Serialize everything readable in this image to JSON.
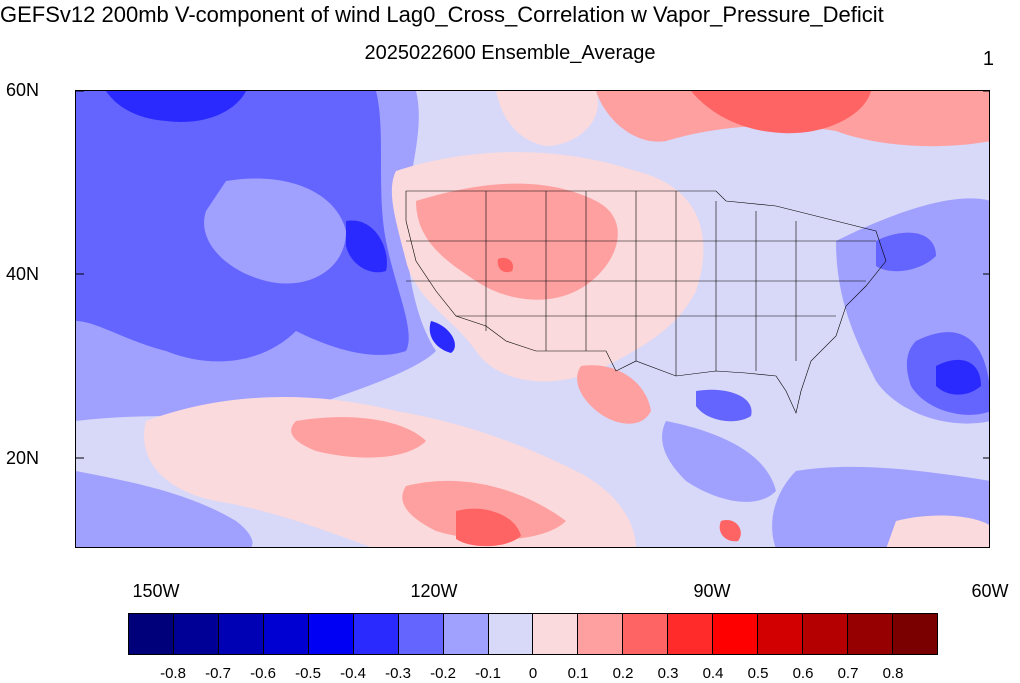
{
  "title": "GEFSv12 200mb V-component of wind Lag0_Cross_Correlation w Vapor_Pressure_Deficit",
  "subtitle": "2025022600 Ensemble_Average",
  "panel_label": "1",
  "lat_labels": [
    "60N",
    "40N",
    "20N"
  ],
  "lon_labels": [
    "150W",
    "120W",
    "90W",
    "60W"
  ],
  "colorbar": {
    "labels": [
      "-0.8",
      "-0.7",
      "-0.6",
      "-0.5",
      "-0.4",
      "-0.3",
      "-0.2",
      "-0.1",
      "0",
      "0.1",
      "0.2",
      "0.3",
      "0.4",
      "0.5",
      "0.6",
      "0.7",
      "0.8"
    ],
    "colors": [
      "#00007a",
      "#000096",
      "#0000b4",
      "#0000d2",
      "#0000f5",
      "#2a2aff",
      "#6464ff",
      "#a0a0ff",
      "#d8d8f8",
      "#fadadd",
      "#ffa0a0",
      "#ff6464",
      "#ff2a2a",
      "#ff0000",
      "#d20000",
      "#b40000",
      "#960000",
      "#7a0000"
    ]
  },
  "colors": {
    "ocean_base": "#a0a0ff",
    "strong_neg": "#6464ff",
    "very_strong_neg": "#2a2aff",
    "weak_neg": "#d8d8f8",
    "weak_pos": "#fadadd",
    "mod_pos": "#ffa0a0",
    "strong_pos": "#ff6464"
  }
}
